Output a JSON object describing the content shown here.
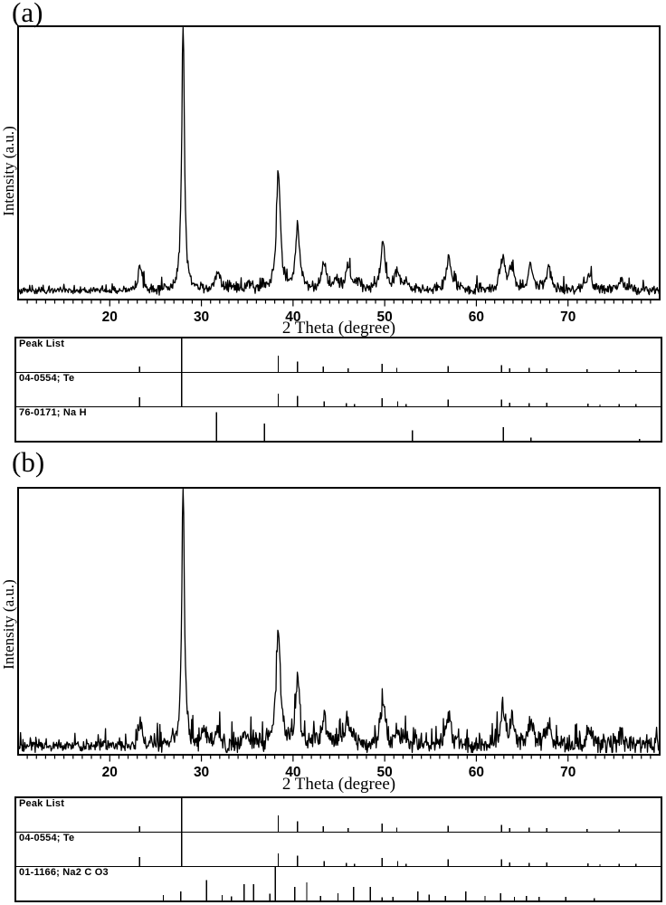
{
  "chart_data": [
    {
      "type": "line",
      "panel": "(a)",
      "xlabel": "2 Theta (degree)",
      "ylabel": "Intensity (a.u.)",
      "xlim": [
        10,
        80
      ],
      "x_major_ticks": [
        20,
        30,
        40,
        50,
        60,
        70
      ],
      "x_tick_labels": [
        "20",
        "30",
        "40",
        "50",
        "60",
        "70"
      ],
      "x_minor_tick_step": 1,
      "ylim": [
        0,
        100
      ],
      "y_units": "a.u.",
      "grid": false,
      "legend": "none",
      "trace_color": "#000000",
      "noise_level_pct": 0.8,
      "peaks_2theta_intensity_width": [
        [
          23.3,
          10,
          0.22
        ],
        [
          28.0,
          105,
          0.17
        ],
        [
          31.8,
          7,
          0.25
        ],
        [
          33.2,
          2,
          0.3
        ],
        [
          35.1,
          2.5,
          0.3
        ],
        [
          38.4,
          44,
          0.26
        ],
        [
          40.5,
          24,
          0.26
        ],
        [
          43.4,
          11,
          0.28
        ],
        [
          44.7,
          3,
          0.3
        ],
        [
          46.0,
          9,
          0.3
        ],
        [
          47.1,
          3,
          0.3
        ],
        [
          49.8,
          18,
          0.28
        ],
        [
          51.4,
          7,
          0.3
        ],
        [
          52.3,
          3,
          0.3
        ],
        [
          57.0,
          12,
          0.32
        ],
        [
          62.9,
          12,
          0.3
        ],
        [
          63.9,
          8.5,
          0.3
        ],
        [
          65.9,
          8.5,
          0.32
        ],
        [
          67.9,
          8.5,
          0.32
        ],
        [
          72.3,
          5.5,
          0.38
        ],
        [
          75.8,
          4,
          0.42
        ]
      ],
      "reference_rows": [
        {
          "label": "Peak List",
          "peaks_2theta_relintensity": [
            [
              23.4,
              18
            ],
            [
              28.0,
              100
            ],
            [
              38.5,
              55
            ],
            [
              40.6,
              35
            ],
            [
              43.4,
              18
            ],
            [
              46.1,
              12
            ],
            [
              49.8,
              28
            ],
            [
              51.4,
              14
            ],
            [
              57.0,
              20
            ],
            [
              62.8,
              22
            ],
            [
              63.7,
              12
            ],
            [
              65.8,
              14
            ],
            [
              67.7,
              12
            ],
            [
              72.1,
              9
            ],
            [
              75.6,
              8
            ],
            [
              77.4,
              6
            ]
          ]
        },
        {
          "label": "04-0554; Te",
          "peaks_2theta_relintensity": [
            [
              23.4,
              30
            ],
            [
              28.0,
              100
            ],
            [
              38.5,
              42
            ],
            [
              40.6,
              35
            ],
            [
              43.5,
              16
            ],
            [
              45.9,
              10
            ],
            [
              46.8,
              8
            ],
            [
              49.8,
              28
            ],
            [
              51.5,
              16
            ],
            [
              52.4,
              8
            ],
            [
              57.0,
              22
            ],
            [
              62.8,
              22
            ],
            [
              63.7,
              12
            ],
            [
              65.8,
              10
            ],
            [
              67.7,
              12
            ],
            [
              72.2,
              9
            ],
            [
              73.5,
              6
            ],
            [
              75.6,
              7
            ],
            [
              77.4,
              7
            ]
          ]
        },
        {
          "label": "76-0171; Na H",
          "peaks_2theta_relintensity": [
            [
              31.8,
              95
            ],
            [
              37.0,
              58
            ],
            [
              53.1,
              35
            ],
            [
              63.0,
              45
            ],
            [
              66.0,
              10
            ],
            [
              77.8,
              6
            ]
          ]
        }
      ]
    },
    {
      "type": "line",
      "panel": "(b)",
      "xlabel": "2 Theta (degree)",
      "ylabel": "Intensity (a.u.)",
      "xlim": [
        10,
        80
      ],
      "x_major_ticks": [
        20,
        30,
        40,
        50,
        60,
        70
      ],
      "x_tick_labels": [
        "20",
        "30",
        "40",
        "50",
        "60",
        "70"
      ],
      "x_minor_tick_step": 1,
      "ylim": [
        0,
        100
      ],
      "y_units": "a.u.",
      "grid": false,
      "legend": "none",
      "trace_color": "#000000",
      "noise_level_pct": 1.5,
      "peaks_2theta_intensity_width": [
        [
          23.3,
          10,
          0.24
        ],
        [
          28.0,
          105,
          0.17
        ],
        [
          30.3,
          5,
          0.3
        ],
        [
          31.8,
          5,
          0.28
        ],
        [
          34.6,
          3,
          0.3
        ],
        [
          35.4,
          3,
          0.3
        ],
        [
          38.4,
          46,
          0.27
        ],
        [
          40.5,
          26,
          0.27
        ],
        [
          43.4,
          11,
          0.3
        ],
        [
          46.0,
          10,
          0.3
        ],
        [
          49.8,
          17,
          0.28
        ],
        [
          51.4,
          7,
          0.3
        ],
        [
          52.3,
          3,
          0.3
        ],
        [
          57.0,
          13,
          0.32
        ],
        [
          62.9,
          13,
          0.3
        ],
        [
          63.9,
          9,
          0.3
        ],
        [
          65.9,
          9,
          0.32
        ],
        [
          67.9,
          9,
          0.32
        ],
        [
          72.3,
          6,
          0.38
        ],
        [
          75.8,
          4,
          0.42
        ]
      ],
      "reference_rows": [
        {
          "label": "Peak List",
          "peaks_2theta_relintensity": [
            [
              23.4,
              18
            ],
            [
              28.0,
              100
            ],
            [
              38.5,
              55
            ],
            [
              40.6,
              35
            ],
            [
              43.4,
              18
            ],
            [
              46.1,
              12
            ],
            [
              49.8,
              28
            ],
            [
              51.4,
              14
            ],
            [
              57.0,
              20
            ],
            [
              62.8,
              22
            ],
            [
              63.7,
              12
            ],
            [
              65.8,
              14
            ],
            [
              67.7,
              12
            ],
            [
              72.1,
              9
            ],
            [
              75.6,
              8
            ]
          ]
        },
        {
          "label": "04-0554; Te",
          "peaks_2theta_relintensity": [
            [
              23.4,
              30
            ],
            [
              28.0,
              100
            ],
            [
              38.5,
              42
            ],
            [
              40.6,
              35
            ],
            [
              43.5,
              16
            ],
            [
              45.9,
              10
            ],
            [
              46.8,
              8
            ],
            [
              49.8,
              28
            ],
            [
              51.5,
              16
            ],
            [
              52.4,
              8
            ],
            [
              57.0,
              22
            ],
            [
              62.8,
              22
            ],
            [
              63.7,
              12
            ],
            [
              65.8,
              10
            ],
            [
              67.7,
              12
            ],
            [
              72.2,
              9
            ],
            [
              73.5,
              6
            ],
            [
              75.6,
              7
            ],
            [
              77.4,
              7
            ]
          ]
        },
        {
          "label": "01-1166; Na2 C O3",
          "peaks_2theta_relintensity": [
            [
              26.0,
              18
            ],
            [
              27.9,
              30
            ],
            [
              30.7,
              68
            ],
            [
              32.4,
              18
            ],
            [
              33.4,
              14
            ],
            [
              34.8,
              55
            ],
            [
              35.8,
              55
            ],
            [
              37.6,
              22
            ],
            [
              38.2,
              100
            ],
            [
              40.3,
              45
            ],
            [
              41.6,
              60
            ],
            [
              43.1,
              15
            ],
            [
              45.0,
              25
            ],
            [
              46.7,
              45
            ],
            [
              48.5,
              45
            ],
            [
              49.8,
              10
            ],
            [
              51.0,
              12
            ],
            [
              53.7,
              30
            ],
            [
              54.9,
              20
            ],
            [
              56.7,
              15
            ],
            [
              58.9,
              30
            ],
            [
              61.0,
              15
            ],
            [
              62.7,
              25
            ],
            [
              64.2,
              12
            ],
            [
              65.5,
              15
            ],
            [
              66.9,
              12
            ],
            [
              69.8,
              12
            ],
            [
              72.9,
              8
            ]
          ]
        }
      ]
    }
  ]
}
